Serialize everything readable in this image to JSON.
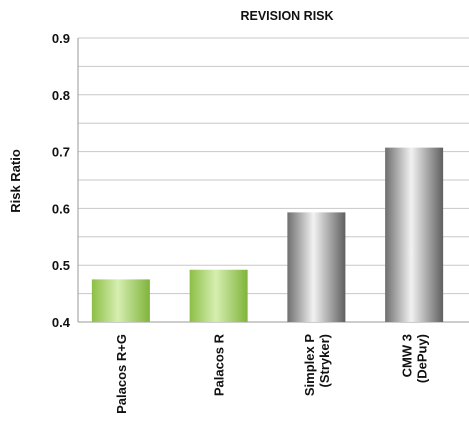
{
  "chart_data": {
    "type": "bar",
    "title": "REVISION RISK",
    "xlabel": "",
    "ylabel": "Risk Ratio",
    "ylim": [
      0.4,
      0.9
    ],
    "yticks": [
      "0.4",
      "0.5",
      "0.6",
      "0.7",
      "0.8",
      "0.9"
    ],
    "grid": true,
    "categories": [
      [
        "Palacos R+G"
      ],
      [
        "Palacos R"
      ],
      [
        "Simplex P",
        "(Stryker)"
      ],
      [
        "CMW 3",
        "(DePuy)"
      ]
    ],
    "values": [
      0.475,
      0.492,
      0.593,
      0.707
    ],
    "bar_colors": [
      "green",
      "green",
      "gray",
      "gray"
    ]
  }
}
